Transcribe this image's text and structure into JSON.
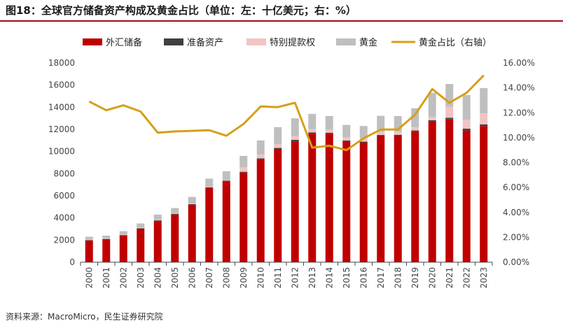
{
  "title": "图18：全球官方储备资产构成及黄金占比（单位：左：十亿美元；右：%）",
  "source": "资料来源：MacroMicro，民生证券研究院",
  "colors": {
    "forex": "#c00000",
    "reserve": "#404040",
    "sdr": "#f2c4c4",
    "gold": "#bfbfbf",
    "ratio": "#d4a017",
    "rule": "#9c0f1c"
  },
  "chart_data": {
    "type": "bar",
    "stacked": true,
    "legend_position": "top",
    "grid": false,
    "categories": [
      "2000",
      "2001",
      "2002",
      "2003",
      "2004",
      "2005",
      "2006",
      "2007",
      "2008",
      "2009",
      "2010",
      "2011",
      "2012",
      "2013",
      "2014",
      "2015",
      "2016",
      "2017",
      "2018",
      "2019",
      "2020",
      "2021",
      "2022",
      "2023"
    ],
    "series": [
      {
        "name": "外汇储备",
        "axis": "left",
        "color": "#c00000",
        "values": [
          1950,
          2050,
          2400,
          3000,
          3700,
          4300,
          5200,
          6700,
          7300,
          8100,
          9300,
          10200,
          10900,
          11600,
          11600,
          10900,
          10800,
          11400,
          11400,
          11800,
          12700,
          12900,
          11900,
          12300
        ]
      },
      {
        "name": "准备资产",
        "axis": "left",
        "color": "#404040",
        "values": [
          50,
          50,
          50,
          60,
          80,
          60,
          50,
          60,
          70,
          70,
          80,
          120,
          150,
          120,
          100,
          100,
          90,
          90,
          110,
          100,
          120,
          150,
          160,
          150
        ]
      },
      {
        "name": "特别提款权",
        "axis": "left",
        "color": "#f2c4c4",
        "values": [
          60,
          60,
          60,
          80,
          70,
          60,
          60,
          60,
          60,
          400,
          350,
          350,
          350,
          300,
          300,
          280,
          280,
          300,
          300,
          300,
          320,
          1000,
          800,
          1000
        ]
      },
      {
        "name": "黄金",
        "axis": "left",
        "color": "#bfbfbf",
        "values": [
          240,
          240,
          290,
          360,
          450,
          470,
          590,
          730,
          790,
          1030,
          1270,
          1530,
          1600,
          1380,
          1200,
          1120,
          1130,
          1430,
          1390,
          1700,
          2160,
          2050,
          2240,
          2280
        ]
      },
      {
        "name": "黄金占比（右轴）",
        "axis": "right",
        "type": "line",
        "color": "#d4a017",
        "values": [
          12.9,
          12.2,
          12.6,
          12.1,
          10.4,
          10.5,
          10.55,
          10.6,
          10.15,
          11.1,
          12.5,
          12.45,
          12.8,
          9.2,
          9.35,
          9.0,
          9.95,
          10.65,
          10.65,
          11.85,
          13.9,
          12.8,
          13.6,
          15.0
        ]
      }
    ],
    "y_left": {
      "min": 0,
      "max": 18000,
      "ticks": [
        "0",
        "2000",
        "4000",
        "6000",
        "8000",
        "10000",
        "12000",
        "14000",
        "16000",
        "18000"
      ]
    },
    "y_right": {
      "min": 0,
      "max": 16,
      "ticks": [
        "0.00%",
        "2.00%",
        "4.00%",
        "6.00%",
        "8.00%",
        "10.00%",
        "12.00%",
        "14.00%",
        "16.00%"
      ]
    }
  }
}
